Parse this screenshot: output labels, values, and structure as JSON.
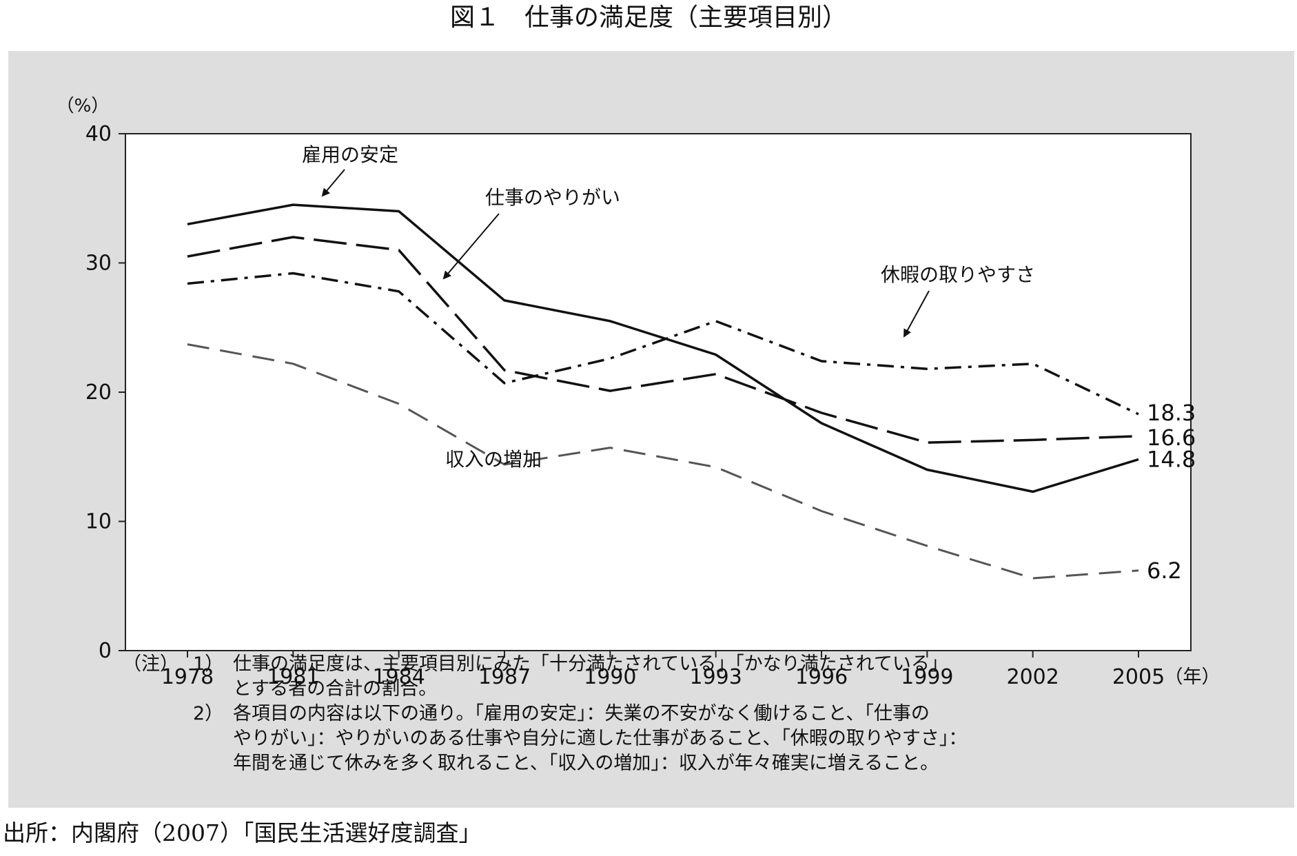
{
  "figure_title": "図１　仕事の満足度（主要項目別）",
  "source_text": "出所：内閣府（2007）「国民生活選好度調査」",
  "notes": {
    "label": "（注）",
    "items": [
      {
        "num": "1）",
        "lines": [
          "仕事の満足度は、主要項目別にみた「十分満たされている」「かなり満たされている」",
          "とする者の合計の割合。"
        ]
      },
      {
        "num": "2）",
        "lines": [
          "各項目の内容は以下の通り。「雇用の安定」：失業の不安がなく働けること、「仕事の",
          "やりがい」：やりがいのある仕事や自分に適した仕事があること、「休暇の取りやすさ」：",
          "年間を通じて休みを多く取れること、「収入の増加」：収入が年々確実に増えること。"
        ]
      }
    ]
  },
  "chart_data": {
    "type": "line",
    "ylabel": "（%）",
    "xunit": "（年）",
    "categories": [
      "1978",
      "1981",
      "1984",
      "1987",
      "1990",
      "1993",
      "1996",
      "1999",
      "2002",
      "2005"
    ],
    "ylim": [
      0,
      40
    ],
    "yticks": [
      0,
      10,
      20,
      30,
      40
    ],
    "grid": false,
    "series": [
      {
        "name": "雇用の安定",
        "style": "solid",
        "color": "#111111",
        "values": [
          33.0,
          34.5,
          34.0,
          27.1,
          25.5,
          22.9,
          17.6,
          14.0,
          12.3,
          14.8
        ],
        "end_label": "14.8"
      },
      {
        "name": "仕事のやりがい",
        "style": "long-dash",
        "color": "#111111",
        "values": [
          30.5,
          32.0,
          31.0,
          21.7,
          20.1,
          21.4,
          18.4,
          16.1,
          16.3,
          16.6
        ],
        "end_label": "16.6"
      },
      {
        "name": "休暇の取りやすさ",
        "style": "dash-dot",
        "color": "#111111",
        "values": [
          28.4,
          29.2,
          27.8,
          20.7,
          22.6,
          25.5,
          22.4,
          21.8,
          22.2,
          18.3
        ],
        "end_label": "18.3"
      },
      {
        "name": "収入の増加",
        "style": "gray-dash",
        "color": "#555555",
        "values": [
          23.7,
          22.2,
          19.1,
          14.4,
          15.7,
          14.2,
          10.8,
          8.1,
          5.6,
          6.2
        ],
        "end_label": "6.2"
      }
    ]
  }
}
